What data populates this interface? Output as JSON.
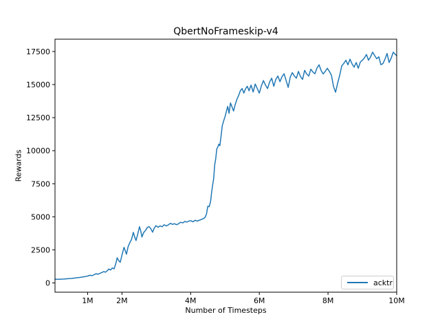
{
  "figure": {
    "background": "#ffffff",
    "frame_color": "#000000"
  },
  "chart_data": {
    "type": "line",
    "title": "QbertNoFrameskip-v4",
    "xlabel": "Number of Timesteps",
    "ylabel": "Rewards",
    "grid": false,
    "xlim_millions": [
      0.05,
      10
    ],
    "ylim": [
      -700,
      18430
    ],
    "x_ticks": [
      {
        "value": 1,
        "label": "1M"
      },
      {
        "value": 2,
        "label": "2M"
      },
      {
        "value": 4,
        "label": "4M"
      },
      {
        "value": 6,
        "label": "6M"
      },
      {
        "value": 8,
        "label": "8M"
      },
      {
        "value": 10,
        "label": "10M"
      }
    ],
    "y_ticks": [
      {
        "value": 0,
        "label": "0"
      },
      {
        "value": 2500,
        "label": "2500"
      },
      {
        "value": 5000,
        "label": "5000"
      },
      {
        "value": 7500,
        "label": "7500"
      },
      {
        "value": 10000,
        "label": "10000"
      },
      {
        "value": 12500,
        "label": "12500"
      },
      {
        "value": 15000,
        "label": "15000"
      },
      {
        "value": 17500,
        "label": "17500"
      }
    ],
    "legend": {
      "position": "lower right",
      "entries": [
        {
          "label": "acktr",
          "color": "#1f77b4"
        }
      ]
    },
    "series": [
      {
        "name": "acktr",
        "color": "#1f77b4",
        "x_unit": "millions of timesteps",
        "points": [
          [
            0.05,
            280
          ],
          [
            0.13,
            270
          ],
          [
            0.21,
            285
          ],
          [
            0.29,
            295
          ],
          [
            0.37,
            308
          ],
          [
            0.45,
            322
          ],
          [
            0.53,
            340
          ],
          [
            0.61,
            365
          ],
          [
            0.69,
            390
          ],
          [
            0.77,
            418
          ],
          [
            0.85,
            448
          ],
          [
            0.93,
            482
          ],
          [
            1.0,
            522
          ],
          [
            1.07,
            578
          ],
          [
            1.13,
            548
          ],
          [
            1.19,
            622
          ],
          [
            1.25,
            700
          ],
          [
            1.3,
            655
          ],
          [
            1.36,
            726
          ],
          [
            1.42,
            790
          ],
          [
            1.47,
            860
          ],
          [
            1.52,
            812
          ],
          [
            1.57,
            922
          ],
          [
            1.62,
            1050
          ],
          [
            1.67,
            978
          ],
          [
            1.72,
            1130
          ],
          [
            1.77,
            1062
          ],
          [
            1.82,
            1450
          ],
          [
            1.86,
            1900
          ],
          [
            1.9,
            1705
          ],
          [
            1.95,
            1560
          ],
          [
            2.0,
            2100
          ],
          [
            2.06,
            2690
          ],
          [
            2.1,
            2405
          ],
          [
            2.13,
            2170
          ],
          [
            2.18,
            2750
          ],
          [
            2.23,
            3055
          ],
          [
            2.28,
            3300
          ],
          [
            2.33,
            3820
          ],
          [
            2.38,
            3400
          ],
          [
            2.41,
            3210
          ],
          [
            2.46,
            3705
          ],
          [
            2.51,
            4250
          ],
          [
            2.55,
            3900
          ],
          [
            2.58,
            3470
          ],
          [
            2.63,
            3800
          ],
          [
            2.69,
            3990
          ],
          [
            2.74,
            4200
          ],
          [
            2.79,
            4255
          ],
          [
            2.84,
            4100
          ],
          [
            2.89,
            3840
          ],
          [
            2.94,
            4150
          ],
          [
            2.99,
            4330
          ],
          [
            3.05,
            4205
          ],
          [
            3.11,
            4310
          ],
          [
            3.17,
            4250
          ],
          [
            3.23,
            4400
          ],
          [
            3.29,
            4310
          ],
          [
            3.35,
            4385
          ],
          [
            3.41,
            4510
          ],
          [
            3.47,
            4430
          ],
          [
            3.53,
            4480
          ],
          [
            3.59,
            4405
          ],
          [
            3.65,
            4480
          ],
          [
            3.71,
            4590
          ],
          [
            3.77,
            4540
          ],
          [
            3.83,
            4650
          ],
          [
            3.89,
            4600
          ],
          [
            3.95,
            4680
          ],
          [
            4.01,
            4700
          ],
          [
            4.07,
            4625
          ],
          [
            4.13,
            4740
          ],
          [
            4.19,
            4680
          ],
          [
            4.25,
            4730
          ],
          [
            4.31,
            4800
          ],
          [
            4.37,
            4860
          ],
          [
            4.42,
            4960
          ],
          [
            4.46,
            5200
          ],
          [
            4.5,
            5805
          ],
          [
            4.54,
            5760
          ],
          [
            4.58,
            6150
          ],
          [
            4.61,
            6850
          ],
          [
            4.64,
            7400
          ],
          [
            4.67,
            7890
          ],
          [
            4.7,
            8930
          ],
          [
            4.73,
            9400
          ],
          [
            4.76,
            10130
          ],
          [
            4.79,
            10280
          ],
          [
            4.82,
            10490
          ],
          [
            4.85,
            10380
          ],
          [
            4.88,
            11000
          ],
          [
            4.92,
            11890
          ],
          [
            4.96,
            12250
          ],
          [
            5.0,
            12565
          ],
          [
            5.04,
            12950
          ],
          [
            5.08,
            13345
          ],
          [
            5.12,
            12825
          ],
          [
            5.16,
            13605
          ],
          [
            5.2,
            13350
          ],
          [
            5.25,
            13000
          ],
          [
            5.3,
            13500
          ],
          [
            5.35,
            13900
          ],
          [
            5.4,
            14180
          ],
          [
            5.45,
            14550
          ],
          [
            5.5,
            14700
          ],
          [
            5.55,
            14355
          ],
          [
            5.6,
            14680
          ],
          [
            5.65,
            14870
          ],
          [
            5.7,
            14530
          ],
          [
            5.76,
            14960
          ],
          [
            5.82,
            14440
          ],
          [
            5.88,
            15040
          ],
          [
            5.94,
            14700
          ],
          [
            6.0,
            14355
          ],
          [
            6.06,
            14900
          ],
          [
            6.12,
            15300
          ],
          [
            6.18,
            14950
          ],
          [
            6.24,
            14700
          ],
          [
            6.3,
            15200
          ],
          [
            6.36,
            15475
          ],
          [
            6.42,
            14870
          ],
          [
            6.48,
            15400
          ],
          [
            6.54,
            15645
          ],
          [
            6.6,
            15215
          ],
          [
            6.66,
            15600
          ],
          [
            6.72,
            15815
          ],
          [
            6.78,
            15300
          ],
          [
            6.84,
            14785
          ],
          [
            6.9,
            15560
          ],
          [
            6.96,
            15900
          ],
          [
            7.02,
            15650
          ],
          [
            7.08,
            15475
          ],
          [
            7.14,
            15990
          ],
          [
            7.2,
            15600
          ],
          [
            7.26,
            15390
          ],
          [
            7.32,
            16075
          ],
          [
            7.38,
            15800
          ],
          [
            7.44,
            15645
          ],
          [
            7.5,
            16160
          ],
          [
            7.56,
            15950
          ],
          [
            7.62,
            15815
          ],
          [
            7.68,
            16250
          ],
          [
            7.74,
            16490
          ],
          [
            7.8,
            16060
          ],
          [
            7.86,
            15800
          ],
          [
            7.92,
            16000
          ],
          [
            7.98,
            16230
          ],
          [
            8.04,
            15990
          ],
          [
            8.1,
            15700
          ],
          [
            8.16,
            14850
          ],
          [
            8.22,
            14420
          ],
          [
            8.28,
            15100
          ],
          [
            8.34,
            15700
          ],
          [
            8.4,
            16410
          ],
          [
            8.46,
            16600
          ],
          [
            8.52,
            16840
          ],
          [
            8.58,
            16490
          ],
          [
            8.64,
            16925
          ],
          [
            8.7,
            16560
          ],
          [
            8.76,
            16320
          ],
          [
            8.82,
            16670
          ],
          [
            8.88,
            16230
          ],
          [
            8.94,
            16700
          ],
          [
            9.0,
            16840
          ],
          [
            9.06,
            17010
          ],
          [
            9.12,
            17270
          ],
          [
            9.18,
            16840
          ],
          [
            9.24,
            17100
          ],
          [
            9.3,
            17450
          ],
          [
            9.36,
            17185
          ],
          [
            9.42,
            16950
          ],
          [
            9.48,
            17100
          ],
          [
            9.54,
            16500
          ],
          [
            9.6,
            16580
          ],
          [
            9.66,
            16925
          ],
          [
            9.72,
            17350
          ],
          [
            9.78,
            16670
          ],
          [
            9.84,
            17000
          ],
          [
            9.9,
            17450
          ],
          [
            9.95,
            17300
          ],
          [
            10.0,
            17185
          ]
        ]
      }
    ]
  }
}
